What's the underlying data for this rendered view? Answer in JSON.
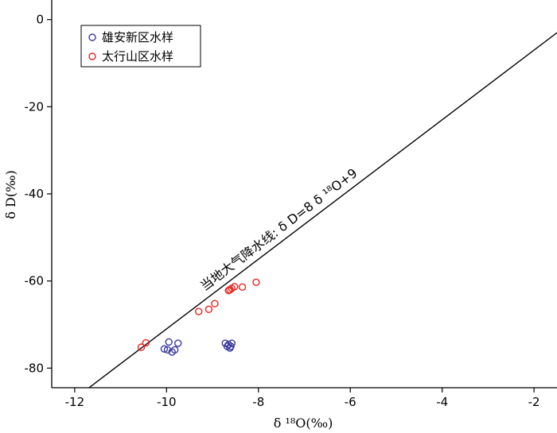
{
  "chart_data": {
    "type": "scatter",
    "xlabel": "δ ¹⁸O(‰)",
    "ylabel": "δ D(‰)",
    "xlim": [
      -12.5,
      -1.5
    ],
    "ylim": [
      -84.5,
      4.5
    ],
    "x_ticks": [
      -12,
      -10,
      -8,
      -6,
      -4,
      -2
    ],
    "y_ticks": [
      0,
      -20,
      -40,
      -60,
      -80
    ],
    "grid": false,
    "legend_position": "top-left",
    "series": [
      {
        "name": "雄安新区水样",
        "color": "#3a3aa0",
        "x": [
          -10.05,
          -9.98,
          -9.95,
          -9.88,
          -9.82,
          -9.75,
          -8.72,
          -8.68,
          -8.65,
          -8.62,
          -8.6,
          -8.58
        ],
        "y": [
          -75.6,
          -75.8,
          -74.0,
          -76.3,
          -75.8,
          -74.3,
          -74.3,
          -75.0,
          -74.6,
          -75.4,
          -75.0,
          -74.3
        ]
      },
      {
        "name": "太行山区水样",
        "color": "#e8231f",
        "x": [
          -10.55,
          -10.45,
          -9.3,
          -9.08,
          -8.95,
          -8.65,
          -8.62,
          -8.58,
          -8.52,
          -8.35,
          -8.05
        ],
        "y": [
          -75.2,
          -74.2,
          -67.0,
          -66.5,
          -65.2,
          -62.2,
          -62.0,
          -61.7,
          -61.3,
          -61.4,
          -60.3
        ]
      }
    ],
    "reference_line": {
      "label": "当地大气降水线: δ D=8 δ ¹⁸O+9",
      "slope": 8,
      "intercept": 9,
      "color": "#000000"
    }
  }
}
